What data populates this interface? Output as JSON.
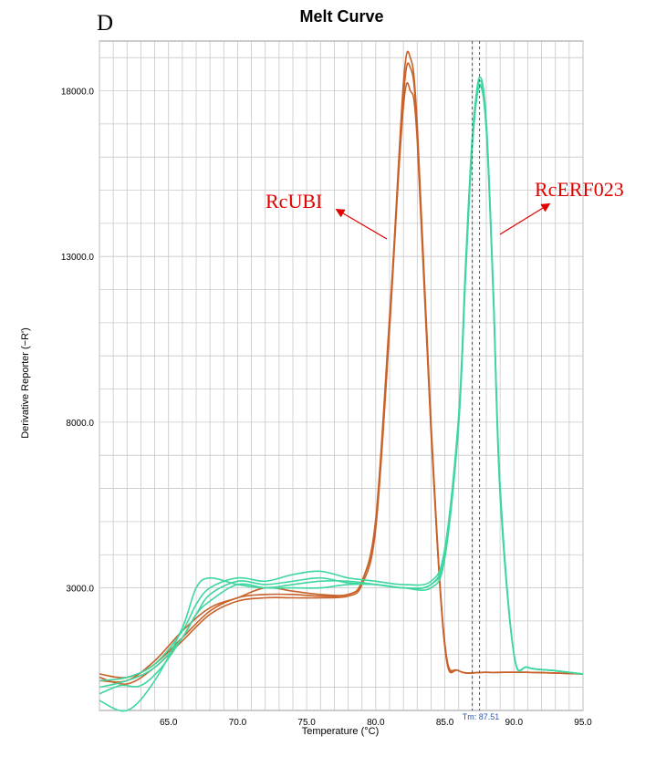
{
  "panel_letter": "D",
  "colors": {
    "rcubi": "#c8622a",
    "rcerf023": "#3fd6a0",
    "annotation": "#e00000",
    "tm_line": "#2a57a8",
    "grid": "#c8c8c8"
  },
  "chart_data": {
    "type": "line",
    "title": "Melt Curve",
    "xlabel": "Temperature (°C)",
    "ylabel": "Derivative Reporter (−R')",
    "xlim": [
      60.0,
      95.0
    ],
    "ylim": [
      -700,
      19500
    ],
    "x_ticks": [
      "65.0",
      "70.0",
      "75.0",
      "80.0",
      "85.0",
      "90.0",
      "95.0"
    ],
    "y_ticks": [
      "3000.0",
      "8000.0",
      "13000.0",
      "18000.0"
    ],
    "grid": true,
    "tm_marker": {
      "x": 87.51,
      "label": "Tm: 87.51"
    },
    "annotations": [
      {
        "text": "RcUBI",
        "series": "RcUBI"
      },
      {
        "text": "RcERF023",
        "series": "RcERF023"
      }
    ],
    "series": [
      {
        "name": "RcUBI",
        "group": "RcUBI",
        "x": [
          60.0,
          62.0,
          64.0,
          66.0,
          68.0,
          70.0,
          72.0,
          74.0,
          76.0,
          78.0,
          79.0,
          80.0,
          81.0,
          82.0,
          82.5,
          83.0,
          84.0,
          85.0,
          86.0,
          88.0,
          91.0,
          95.0
        ],
        "y": [
          400,
          300,
          700,
          1500,
          2300,
          2700,
          2800,
          2800,
          2750,
          2800,
          3200,
          5000,
          11000,
          18200,
          19000,
          17000,
          8000,
          1300,
          500,
          450,
          450,
          400
        ]
      },
      {
        "name": "RcUBI",
        "group": "RcUBI",
        "x": [
          60.0,
          62.0,
          64.0,
          66.0,
          68.0,
          70.0,
          72.0,
          74.0,
          76.0,
          78.0,
          79.0,
          80.0,
          81.0,
          82.0,
          82.5,
          83.0,
          84.0,
          85.0,
          86.0,
          88.0,
          91.0,
          95.0
        ],
        "y": [
          300,
          100,
          600,
          1400,
          2200,
          2600,
          2700,
          2700,
          2700,
          2750,
          3100,
          4800,
          10800,
          17800,
          18700,
          16800,
          7800,
          1200,
          500,
          450,
          450,
          400
        ]
      },
      {
        "name": "RcUBI",
        "group": "RcUBI",
        "x": [
          60.0,
          62.0,
          64.0,
          66.0,
          68.0,
          70.0,
          72.0,
          74.0,
          76.0,
          78.0,
          79.0,
          80.0,
          81.0,
          82.0,
          82.5,
          83.0,
          84.0,
          85.0,
          86.0,
          88.0,
          91.0,
          95.0
        ],
        "y": [
          200,
          200,
          800,
          1700,
          2400,
          2700,
          3000,
          2900,
          2800,
          2800,
          3200,
          5100,
          11200,
          17500,
          18000,
          16500,
          7700,
          1300,
          500,
          450,
          450,
          400
        ]
      },
      {
        "name": "RcERF023",
        "group": "RcERF023",
        "x": [
          60.0,
          62.0,
          64.0,
          66.0,
          67.0,
          68.0,
          70.0,
          72.0,
          74.0,
          76.0,
          78.0,
          80.0,
          82.0,
          84.0,
          85.0,
          86.0,
          86.5,
          87.0,
          87.5,
          88.0,
          88.5,
          89.0,
          90.0,
          91.0,
          93.0,
          95.0
        ],
        "y": [
          -400,
          -700,
          200,
          1800,
          3000,
          3300,
          3100,
          3000,
          3100,
          3200,
          3200,
          3100,
          3000,
          3100,
          4000,
          8000,
          12500,
          16500,
          18300,
          17000,
          12000,
          6000,
          1000,
          600,
          500,
          400
        ]
      },
      {
        "name": "RcERF023",
        "group": "RcERF023",
        "x": [
          60.0,
          62.0,
          64.0,
          66.0,
          67.0,
          68.0,
          70.0,
          72.0,
          74.0,
          76.0,
          78.0,
          80.0,
          82.0,
          84.0,
          85.0,
          86.0,
          86.5,
          87.0,
          87.5,
          88.0,
          88.5,
          89.0,
          90.0,
          91.0,
          93.0,
          95.0
        ],
        "y": [
          200,
          300,
          700,
          1700,
          2500,
          3000,
          3300,
          3200,
          3400,
          3500,
          3300,
          3200,
          3100,
          3200,
          4200,
          8200,
          12800,
          16700,
          18200,
          16800,
          11800,
          5800,
          1000,
          600,
          500,
          400
        ]
      },
      {
        "name": "RcERF023",
        "group": "RcERF023",
        "x": [
          60.0,
          62.0,
          64.0,
          66.0,
          67.0,
          68.0,
          70.0,
          72.0,
          74.0,
          76.0,
          78.0,
          80.0,
          82.0,
          84.0,
          85.0,
          86.0,
          86.5,
          87.0,
          87.5,
          88.0,
          88.5,
          89.0,
          90.0,
          91.0,
          93.0,
          95.0
        ],
        "y": [
          0,
          200,
          600,
          1500,
          2200,
          2600,
          3100,
          3000,
          3000,
          3000,
          3100,
          3100,
          3000,
          3000,
          3900,
          7900,
          12400,
          16400,
          18100,
          16900,
          11900,
          5900,
          1000,
          600,
          500,
          400
        ]
      },
      {
        "name": "RcERF023",
        "group": "RcERF023",
        "x": [
          60.0,
          61.5,
          63.0,
          64.5,
          66.0,
          67.0,
          68.0,
          70.0,
          72.0,
          74.0,
          76.0,
          78.0,
          80.0,
          82.0,
          84.0,
          85.0,
          86.0,
          86.5,
          87.0,
          87.5,
          88.0,
          88.5,
          89.0,
          90.0,
          91.0,
          93.0,
          95.0
        ],
        "y": [
          -200,
          50,
          50,
          600,
          1500,
          2200,
          2800,
          3200,
          3100,
          3200,
          3300,
          3150,
          3100,
          3000,
          3100,
          4100,
          8100,
          12600,
          16600,
          18400,
          17100,
          12100,
          6100,
          1000,
          600,
          500,
          400
        ]
      }
    ]
  }
}
